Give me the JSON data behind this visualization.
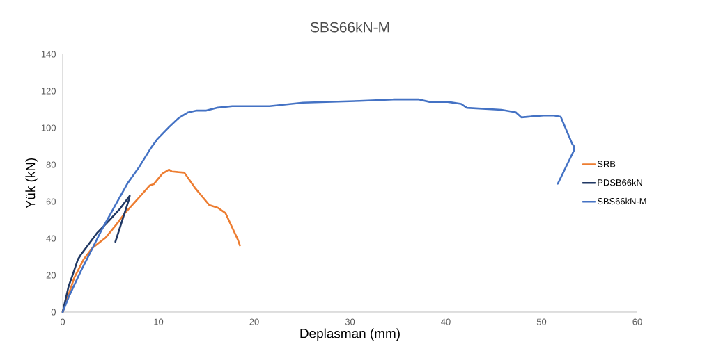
{
  "chart_data": {
    "type": "line",
    "title": "SBS66kN-M",
    "xlabel": "Deplasman (mm)",
    "ylabel": "Yük (kN)",
    "xlim": [
      0,
      60
    ],
    "ylim": [
      0,
      140
    ],
    "xticks": [
      0,
      10,
      20,
      30,
      40,
      50,
      60
    ],
    "yticks": [
      0,
      20,
      40,
      60,
      80,
      100,
      120,
      140
    ],
    "grid": false,
    "legend": "right",
    "series": [
      {
        "name": "SRB",
        "color": "#ed7d31",
        "x": [
          0,
          1.2,
          2.2,
          3.1,
          4.5,
          5.6,
          6.5,
          7.8,
          9.1,
          9.5,
          10.4,
          11.1,
          11.4,
          12.7,
          13.8,
          15.3,
          16.2,
          17.0,
          18.3,
          18.5
        ],
        "values": [
          0,
          18.5,
          28.7,
          34.8,
          40.5,
          47.5,
          53.7,
          61.2,
          68.8,
          69.4,
          75.1,
          77.3,
          76.3,
          75.7,
          67.5,
          58.1,
          56.6,
          53.7,
          39.2,
          36.2
        ]
      },
      {
        "name": "PDSB66kN",
        "color": "#203864",
        "x": [
          0,
          0.6,
          1.1,
          1.6,
          1.9,
          2.9,
          3.6,
          4.8,
          6.0,
          7.0,
          6.9,
          5.5
        ],
        "values": [
          0,
          13.6,
          21.1,
          28.7,
          31.1,
          38.1,
          43,
          49.4,
          56.2,
          63.1,
          60.8,
          38.1
        ]
      },
      {
        "name": "SBS66kN-M",
        "color": "#4472c4",
        "x": [
          0,
          0.7,
          1.9,
          2.9,
          4.1,
          5.3,
          6.8,
          8.0,
          9.2,
          9.9,
          11.1,
          12.1,
          13.1,
          14.0,
          15.0,
          16.2,
          17.7,
          21.6,
          25.1,
          31.0,
          34.5,
          37.2,
          38.3,
          40.2,
          41.6,
          42.2,
          45.8,
          47.3,
          47.9,
          48.5,
          50.2,
          51.3,
          52.0,
          53.2,
          53.4,
          53.4,
          51.7
        ],
        "values": [
          0,
          9,
          22.3,
          32.5,
          44.9,
          56.2,
          70.1,
          78.9,
          89,
          94,
          100.4,
          105.3,
          108.4,
          109.4,
          109.4,
          111,
          111.8,
          111.8,
          113.7,
          114.6,
          115.4,
          115.4,
          114.1,
          114.1,
          113,
          110.9,
          109.8,
          108.5,
          105.7,
          106,
          106.7,
          106.7,
          106,
          91.3,
          89.9,
          87.9,
          69.7
        ]
      }
    ]
  }
}
